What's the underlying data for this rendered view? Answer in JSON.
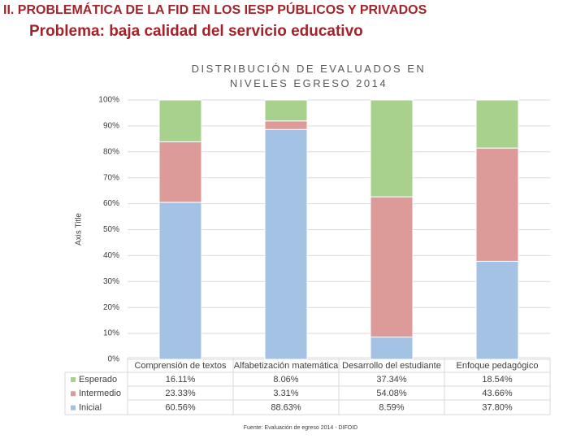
{
  "header": {
    "title": "II.  PROBLEMÁTICA DE LA FID EN LOS IESP PÚBLICOS Y PRIVADOS",
    "subtitle": "Problema: baja calidad del servicio educativo"
  },
  "chart_data": {
    "type": "stacked_bar",
    "title": "DISTRIBUCIÓN DE EVALUADOS EN NIVELES EGRESO 2014",
    "y_label": "Axis Title",
    "categories": [
      "Comprensión de textos",
      "Alfabetización matemática",
      "Desarrollo del estudiante",
      "Enfoque pedagógico"
    ],
    "series": [
      {
        "name": "Esperado",
        "color": "#a9d18e",
        "values": [
          16.11,
          8.06,
          37.34,
          18.54
        ],
        "value_labels": [
          "16.11%",
          "8.06%",
          "37.34%",
          "18.54%"
        ]
      },
      {
        "name": "Intermedio",
        "color": "#dc9a98",
        "values": [
          23.33,
          3.31,
          54.08,
          43.66
        ],
        "value_labels": [
          "23.33%",
          "3.31%",
          "54.08%",
          "43.66%"
        ]
      },
      {
        "name": "Inicial",
        "color": "#a4c2e4",
        "values": [
          60.56,
          88.63,
          8.59,
          37.8
        ],
        "value_labels": [
          "60.56%",
          "88.63%",
          "8.59%",
          "37.80%"
        ]
      }
    ],
    "ylim": [
      0,
      100
    ],
    "yticks": [
      {
        "value": 0,
        "label": "0%"
      },
      {
        "value": 10,
        "label": "10%"
      },
      {
        "value": 20,
        "label": "20%"
      },
      {
        "value": 30,
        "label": "30%"
      },
      {
        "value": 40,
        "label": "40%"
      },
      {
        "value": 50,
        "label": "50%"
      },
      {
        "value": 60,
        "label": "60%"
      },
      {
        "value": 70,
        "label": "70%"
      },
      {
        "value": 80,
        "label": "80%"
      },
      {
        "value": 90,
        "label": "90%"
      },
      {
        "value": 100,
        "label": "100%"
      }
    ],
    "grid": true,
    "source": "Fuente: Evaluación de egreso 2014 - DIFOID"
  }
}
